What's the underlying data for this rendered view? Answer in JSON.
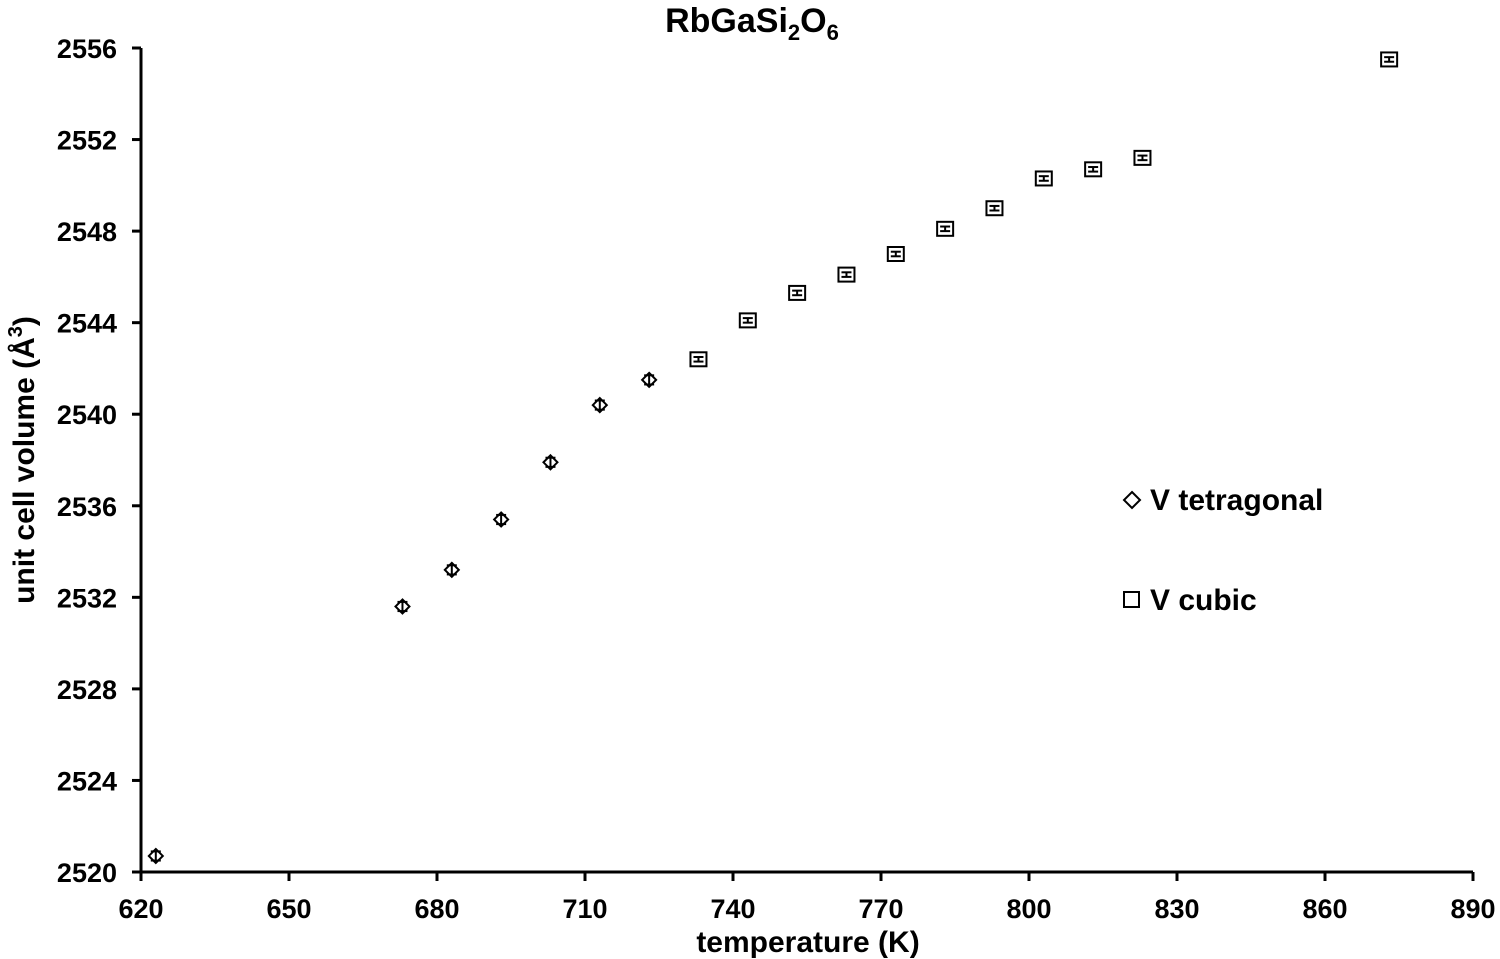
{
  "chart_data": {
    "type": "scatter",
    "title": "RbGaSi2O6",
    "title_parts": {
      "base": "RbGaSi",
      "sub1": "2",
      "mid": "O",
      "sub2": "6"
    },
    "xlabel": "temperature (K)",
    "ylabel_parts": {
      "main": "unit cell volume (Å",
      "sup": "3",
      "end": ")"
    },
    "xlim": [
      620,
      890
    ],
    "ylim": [
      2520,
      2556
    ],
    "xticks": [
      "620",
      "650",
      "680",
      "710",
      "740",
      "770",
      "800",
      "830",
      "860",
      "890"
    ],
    "yticks": [
      "2520",
      "2524",
      "2528",
      "2532",
      "2536",
      "2540",
      "2544",
      "2548",
      "2552",
      "2556"
    ],
    "grid": false,
    "legend_position": "right",
    "series": [
      {
        "name": "V tetragonal",
        "marker": "diamond",
        "x": [
          623,
          673,
          683,
          693,
          703,
          713,
          723
        ],
        "y": [
          2520.7,
          2531.6,
          2533.2,
          2535.4,
          2537.9,
          2540.4,
          2541.5
        ],
        "err": [
          0.2,
          0.2,
          0.2,
          0.2,
          0.2,
          0.2,
          0.2
        ]
      },
      {
        "name": "V cubic",
        "marker": "square",
        "x": [
          733,
          743,
          753,
          763,
          773,
          783,
          793,
          803,
          813,
          823,
          873
        ],
        "y": [
          2542.4,
          2544.1,
          2545.3,
          2546.1,
          2547.0,
          2548.1,
          2549.0,
          2550.3,
          2550.7,
          2551.2,
          2555.5
        ],
        "err": [
          0.1,
          0.1,
          0.1,
          0.1,
          0.1,
          0.1,
          0.1,
          0.1,
          0.1,
          0.1,
          0.1
        ]
      }
    ]
  }
}
